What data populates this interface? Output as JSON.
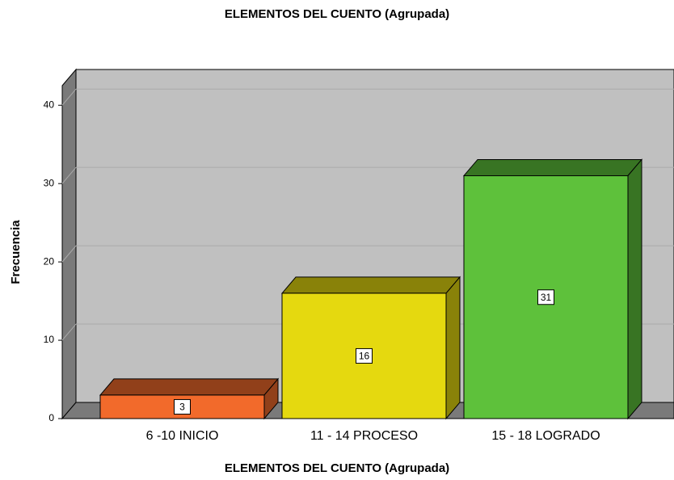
{
  "chart_data": {
    "type": "bar3d",
    "title": "ELEMENTOS DEL CUENTO (Agrupada)",
    "x_label": "ELEMENTOS DEL CUENTO (Agrupada)",
    "y_label": "Frecuencia",
    "categories": [
      "6 -10 INICIO",
      "11 - 14 PROCESO",
      "15 - 18 LOGRADO"
    ],
    "series": [
      {
        "name": "Frecuencia",
        "colors": [
          "#f26a2b",
          "#e5d90f",
          "#5ec13b"
        ],
        "values": [
          3,
          16,
          31
        ]
      }
    ],
    "ylim": [
      0,
      42.5
    ],
    "yticks": [
      0,
      10,
      20,
      30,
      40
    ],
    "grid": true
  }
}
